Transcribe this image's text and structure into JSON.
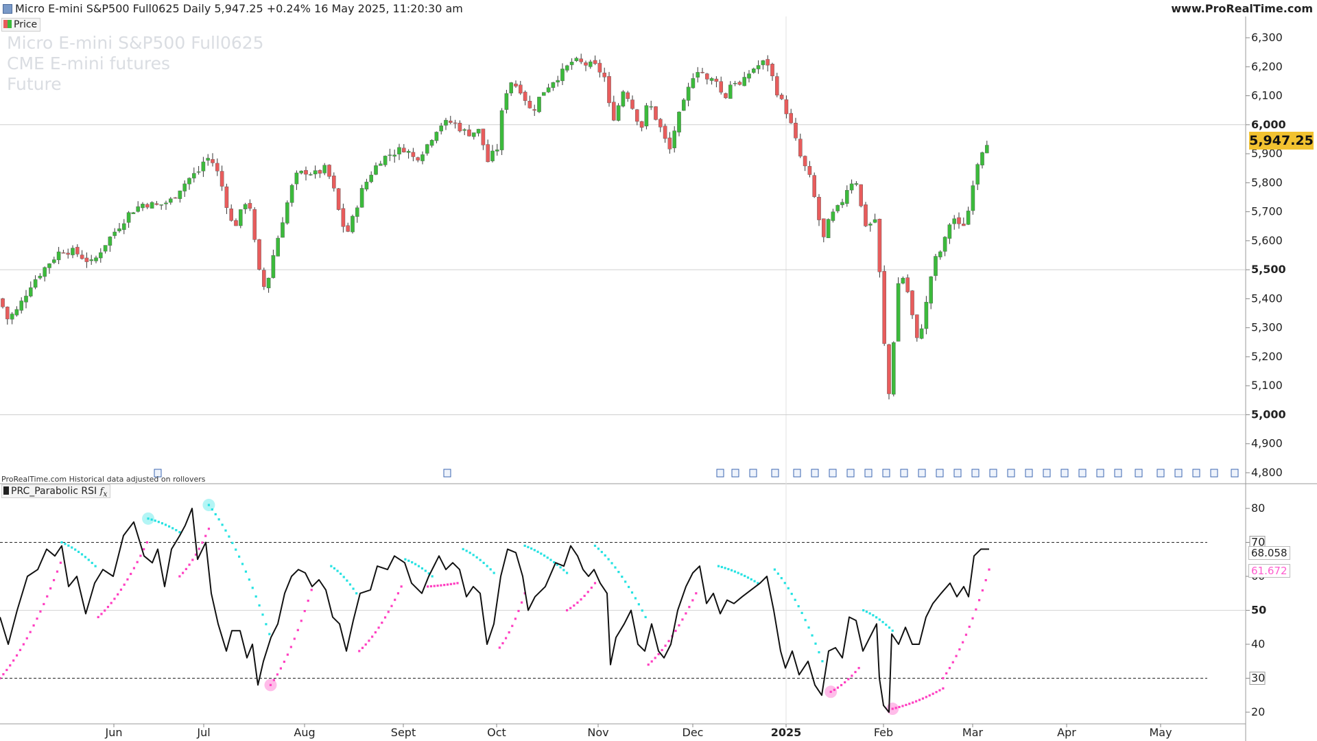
{
  "window": {
    "title": "Micro E-mini S&P500 Full0625 Daily 5,947.25 +0.24% 16 May 2025, 11:20:30 am",
    "site": "www.ProRealTime.com"
  },
  "price_tag": "Price",
  "watermark": [
    "Micro E-mini S&P500 Full0625",
    "CME E-mini futures",
    "Future"
  ],
  "footnote": "ProRealTime.com Historical data adjusted on rollovers",
  "indicator_tag": "PRC_Parabolic RSI",
  "current_price_label": "5,947.25",
  "rsi_value_label": "68.058",
  "sar_value_label": "61.672",
  "colors": {
    "up": "#3cba3c",
    "down": "#e85c5c",
    "rsi": "#111111",
    "sar_up": "#ff3fc1",
    "sar_down": "#25e2e2",
    "price_badge": "#f2c230"
  },
  "chart_data": [
    {
      "type": "candlestick",
      "title": "Micro E-mini S&P500 Full0625 Daily",
      "x_tick_labels": [
        "Jun",
        "Jul",
        "Aug",
        "Sept",
        "Oct",
        "Nov",
        "Dec",
        "2025",
        "Feb",
        "Mar",
        "Apr",
        "May"
      ],
      "y_tick_labels": [
        "6,300",
        "6,200",
        "6,100",
        "6,000",
        "5,900",
        "5,800",
        "5,700",
        "5,600",
        "5,500",
        "5,400",
        "5,300",
        "5,200",
        "5,100",
        "5,000",
        "4,900",
        "4,800"
      ],
      "ylim": [
        4780,
        6330
      ],
      "grid": "horizontal at 5,000 / 5,500 / 6,000",
      "last_price": 5947.25,
      "close_path": [
        [
          0,
          5400
        ],
        [
          10,
          5330
        ],
        [
          25,
          5360
        ],
        [
          45,
          5450
        ],
        [
          70,
          5520
        ],
        [
          90,
          5570
        ],
        [
          110,
          5560
        ],
        [
          135,
          5520
        ],
        [
          150,
          5580
        ],
        [
          170,
          5640
        ],
        [
          190,
          5700
        ],
        [
          210,
          5730
        ],
        [
          230,
          5720
        ],
        [
          250,
          5740
        ],
        [
          262,
          5780
        ],
        [
          278,
          5820
        ],
        [
          290,
          5840
        ],
        [
          300,
          5890
        ],
        [
          310,
          5870
        ],
        [
          320,
          5820
        ],
        [
          330,
          5730
        ],
        [
          340,
          5640
        ],
        [
          350,
          5690
        ],
        [
          362,
          5760
        ],
        [
          372,
          5580
        ],
        [
          380,
          5460
        ],
        [
          388,
          5430
        ],
        [
          395,
          5520
        ],
        [
          405,
          5610
        ],
        [
          415,
          5700
        ],
        [
          430,
          5820
        ],
        [
          445,
          5840
        ],
        [
          460,
          5830
        ],
        [
          475,
          5850
        ],
        [
          485,
          5790
        ],
        [
          495,
          5690
        ],
        [
          505,
          5620
        ],
        [
          515,
          5680
        ],
        [
          525,
          5760
        ],
        [
          540,
          5830
        ],
        [
          555,
          5880
        ],
        [
          570,
          5900
        ],
        [
          590,
          5920
        ],
        [
          605,
          5880
        ],
        [
          620,
          5920
        ],
        [
          640,
          6000
        ],
        [
          660,
          6010
        ],
        [
          680,
          5970
        ],
        [
          700,
          5980
        ],
        [
          710,
          5870
        ],
        [
          725,
          5920
        ],
        [
          735,
          6100
        ],
        [
          745,
          6150
        ],
        [
          760,
          6120
        ],
        [
          775,
          6040
        ],
        [
          790,
          6110
        ],
        [
          805,
          6150
        ],
        [
          820,
          6180
        ],
        [
          835,
          6220
        ],
        [
          850,
          6210
        ],
        [
          870,
          6200
        ],
        [
          885,
          6150
        ],
        [
          890,
          6010
        ],
        [
          898,
          6040
        ],
        [
          910,
          6130
        ],
        [
          922,
          6060
        ],
        [
          935,
          5990
        ],
        [
          945,
          6080
        ],
        [
          955,
          6030
        ],
        [
          968,
          5960
        ],
        [
          975,
          5900
        ],
        [
          985,
          6000
        ],
        [
          998,
          6080
        ],
        [
          1010,
          6170
        ],
        [
          1020,
          6200
        ],
        [
          1030,
          6150
        ],
        [
          1045,
          6160
        ],
        [
          1055,
          6080
        ],
        [
          1068,
          6160
        ],
        [
          1080,
          6130
        ],
        [
          1095,
          6190
        ],
        [
          1110,
          6210
        ],
        [
          1118,
          6220
        ],
        [
          1125,
          6170
        ],
        [
          1135,
          6100
        ],
        [
          1148,
          6040
        ],
        [
          1158,
          5960
        ],
        [
          1168,
          5880
        ],
        [
          1180,
          5820
        ],
        [
          1190,
          5720
        ],
        [
          1200,
          5600
        ],
        [
          1210,
          5680
        ],
        [
          1225,
          5720
        ],
        [
          1238,
          5800
        ],
        [
          1248,
          5810
        ],
        [
          1258,
          5680
        ],
        [
          1265,
          5640
        ],
        [
          1275,
          5690
        ],
        [
          1282,
          5500
        ],
        [
          1288,
          5300
        ],
        [
          1293,
          5050
        ],
        [
          1300,
          5100
        ],
        [
          1305,
          5380
        ],
        [
          1312,
          5490
        ],
        [
          1320,
          5460
        ],
        [
          1328,
          5370
        ],
        [
          1336,
          5250
        ],
        [
          1344,
          5310
        ],
        [
          1352,
          5400
        ],
        [
          1360,
          5520
        ],
        [
          1375,
          5580
        ],
        [
          1388,
          5690
        ],
        [
          1400,
          5640
        ],
        [
          1410,
          5680
        ],
        [
          1418,
          5800
        ],
        [
          1426,
          5880
        ],
        [
          1436,
          5940
        ],
        [
          1442,
          5947
        ]
      ]
    },
    {
      "type": "line",
      "title": "PRC_Parabolic RSI",
      "y_tick_labels": [
        "80",
        "70",
        "60",
        "50",
        "40",
        "30",
        "20"
      ],
      "ylim": [
        16,
        85
      ],
      "levels": [
        70,
        30
      ],
      "series": [
        {
          "name": "RSI",
          "last": 68.058,
          "values": [
            [
              0,
              48
            ],
            [
              12,
              40
            ],
            [
              25,
              50
            ],
            [
              40,
              60
            ],
            [
              55,
              62
            ],
            [
              68,
              68
            ],
            [
              80,
              66
            ],
            [
              90,
              69
            ],
            [
              100,
              57
            ],
            [
              112,
              60
            ],
            [
              125,
              49
            ],
            [
              138,
              58
            ],
            [
              150,
              62
            ],
            [
              165,
              60
            ],
            [
              180,
              72
            ],
            [
              195,
              76
            ],
            [
              210,
              66
            ],
            [
              222,
              64
            ],
            [
              230,
              68
            ],
            [
              240,
              57
            ],
            [
              250,
              68
            ],
            [
              262,
              72
            ],
            [
              270,
              75
            ],
            [
              280,
              80
            ],
            [
              288,
              65
            ],
            [
              300,
              70
            ],
            [
              308,
              55
            ],
            [
              318,
              46
            ],
            [
              330,
              38
            ],
            [
              338,
              44
            ],
            [
              350,
              44
            ],
            [
              360,
              36
            ],
            [
              368,
              40
            ],
            [
              376,
              28
            ],
            [
              384,
              35
            ],
            [
              395,
              42
            ],
            [
              405,
              46
            ],
            [
              415,
              55
            ],
            [
              425,
              60
            ],
            [
              435,
              62
            ],
            [
              445,
              61
            ],
            [
              455,
              57
            ],
            [
              465,
              59
            ],
            [
              475,
              56
            ],
            [
              485,
              48
            ],
            [
              495,
              46
            ],
            [
              505,
              38
            ],
            [
              515,
              47
            ],
            [
              525,
              55
            ],
            [
              540,
              56
            ],
            [
              550,
              63
            ],
            [
              565,
              62
            ],
            [
              575,
              66
            ],
            [
              590,
              64
            ],
            [
              600,
              58
            ],
            [
              615,
              55
            ],
            [
              625,
              60
            ],
            [
              640,
              66
            ],
            [
              650,
              62
            ],
            [
              660,
              64
            ],
            [
              670,
              62
            ],
            [
              680,
              54
            ],
            [
              690,
              57
            ],
            [
              700,
              55
            ],
            [
              710,
              40
            ],
            [
              720,
              46
            ],
            [
              730,
              60
            ],
            [
              740,
              68
            ],
            [
              752,
              67
            ],
            [
              762,
              60
            ],
            [
              770,
              50
            ],
            [
              780,
              54
            ],
            [
              795,
              57
            ],
            [
              810,
              64
            ],
            [
              822,
              63
            ],
            [
              832,
              69
            ],
            [
              842,
              66
            ],
            [
              850,
              62
            ],
            [
              858,
              60
            ],
            [
              866,
              62
            ],
            [
              875,
              58
            ],
            [
              885,
              55
            ],
            [
              890,
              34
            ],
            [
              898,
              42
            ],
            [
              910,
              46
            ],
            [
              920,
              50
            ],
            [
              930,
              40
            ],
            [
              940,
              38
            ],
            [
              950,
              46
            ],
            [
              960,
              38
            ],
            [
              968,
              36
            ],
            [
              978,
              40
            ],
            [
              988,
              50
            ],
            [
              1000,
              57
            ],
            [
              1010,
              61
            ],
            [
              1020,
              63
            ],
            [
              1030,
              52
            ],
            [
              1040,
              55
            ],
            [
              1050,
              49
            ],
            [
              1060,
              53
            ],
            [
              1070,
              52
            ],
            [
              1082,
              54
            ],
            [
              1095,
              56
            ],
            [
              1108,
              58
            ],
            [
              1118,
              60
            ],
            [
              1128,
              50
            ],
            [
              1138,
              38
            ],
            [
              1145,
              33
            ],
            [
              1155,
              38
            ],
            [
              1165,
              31
            ],
            [
              1178,
              35
            ],
            [
              1188,
              28
            ],
            [
              1198,
              25
            ],
            [
              1208,
              38
            ],
            [
              1218,
              39
            ],
            [
              1228,
              36
            ],
            [
              1238,
              48
            ],
            [
              1248,
              47
            ],
            [
              1258,
              38
            ],
            [
              1268,
              42
            ],
            [
              1278,
              46
            ],
            [
              1282,
              30
            ],
            [
              1288,
              22
            ],
            [
              1296,
              20
            ],
            [
              1300,
              43
            ],
            [
              1310,
              40
            ],
            [
              1320,
              45
            ],
            [
              1330,
              40
            ],
            [
              1340,
              40
            ],
            [
              1350,
              48
            ],
            [
              1360,
              52
            ],
            [
              1372,
              55
            ],
            [
              1385,
              58
            ],
            [
              1395,
              54
            ],
            [
              1405,
              57
            ],
            [
              1412,
              54
            ],
            [
              1420,
              66
            ],
            [
              1430,
              68
            ],
            [
              1442,
              68
            ]
          ]
        },
        {
          "name": "SAR",
          "last": 61.672
        }
      ]
    }
  ]
}
